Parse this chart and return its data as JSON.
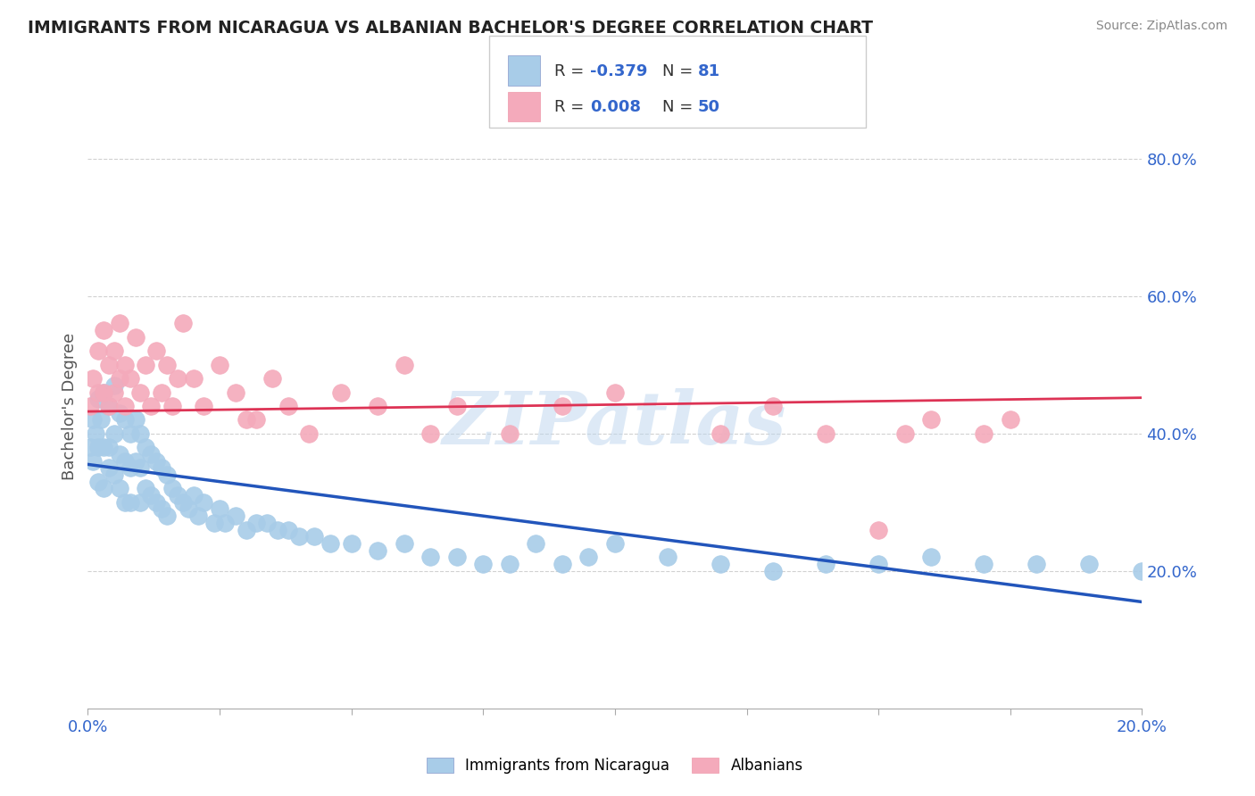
{
  "title": "IMMIGRANTS FROM NICARAGUA VS ALBANIAN BACHELOR'S DEGREE CORRELATION CHART",
  "source_text": "Source: ZipAtlas.com",
  "ylabel": "Bachelor's Degree",
  "xlim": [
    0.0,
    0.2
  ],
  "ylim": [
    0.0,
    0.88
  ],
  "yticks": [
    0.2,
    0.4,
    0.6,
    0.8
  ],
  "ytick_labels": [
    "20.0%",
    "40.0%",
    "60.0%",
    "80.0%"
  ],
  "xticks": [
    0.0,
    0.025,
    0.05,
    0.075,
    0.1,
    0.125,
    0.15,
    0.175,
    0.2
  ],
  "xtick_labels": [
    "0.0%",
    "",
    "",
    "",
    "",
    "",
    "",
    "",
    "20.0%"
  ],
  "series1_label": "Immigrants from Nicaragua",
  "series2_label": "Albanians",
  "color1": "#A8CCE8",
  "color2": "#F4AABB",
  "line_color1": "#2255BB",
  "line_color2": "#DD3355",
  "background_color": "#FFFFFF",
  "grid_color": "#CCCCCC",
  "watermark_text": "ZIPatlas",
  "series1_x": [
    0.0005,
    0.001,
    0.001,
    0.0015,
    0.002,
    0.002,
    0.002,
    0.0025,
    0.003,
    0.003,
    0.003,
    0.004,
    0.004,
    0.004,
    0.005,
    0.005,
    0.005,
    0.006,
    0.006,
    0.006,
    0.007,
    0.007,
    0.007,
    0.008,
    0.008,
    0.008,
    0.009,
    0.009,
    0.01,
    0.01,
    0.01,
    0.011,
    0.011,
    0.012,
    0.012,
    0.013,
    0.013,
    0.014,
    0.014,
    0.015,
    0.015,
    0.016,
    0.017,
    0.018,
    0.019,
    0.02,
    0.021,
    0.022,
    0.024,
    0.025,
    0.026,
    0.028,
    0.03,
    0.032,
    0.034,
    0.036,
    0.038,
    0.04,
    0.043,
    0.046,
    0.05,
    0.055,
    0.06,
    0.065,
    0.07,
    0.075,
    0.08,
    0.085,
    0.09,
    0.095,
    0.1,
    0.11,
    0.12,
    0.13,
    0.14,
    0.15,
    0.16,
    0.17,
    0.18,
    0.19,
    0.2
  ],
  "series1_y": [
    0.38,
    0.42,
    0.36,
    0.4,
    0.45,
    0.38,
    0.33,
    0.42,
    0.46,
    0.38,
    0.32,
    0.44,
    0.38,
    0.35,
    0.47,
    0.4,
    0.34,
    0.43,
    0.37,
    0.32,
    0.42,
    0.36,
    0.3,
    0.4,
    0.35,
    0.3,
    0.42,
    0.36,
    0.4,
    0.35,
    0.3,
    0.38,
    0.32,
    0.37,
    0.31,
    0.36,
    0.3,
    0.35,
    0.29,
    0.34,
    0.28,
    0.32,
    0.31,
    0.3,
    0.29,
    0.31,
    0.28,
    0.3,
    0.27,
    0.29,
    0.27,
    0.28,
    0.26,
    0.27,
    0.27,
    0.26,
    0.26,
    0.25,
    0.25,
    0.24,
    0.24,
    0.23,
    0.24,
    0.22,
    0.22,
    0.21,
    0.21,
    0.24,
    0.21,
    0.22,
    0.24,
    0.22,
    0.21,
    0.2,
    0.21,
    0.21,
    0.22,
    0.21,
    0.21,
    0.21,
    0.2
  ],
  "series2_x": [
    0.0005,
    0.001,
    0.002,
    0.002,
    0.003,
    0.003,
    0.004,
    0.004,
    0.005,
    0.005,
    0.006,
    0.006,
    0.007,
    0.007,
    0.008,
    0.009,
    0.01,
    0.011,
    0.012,
    0.013,
    0.014,
    0.015,
    0.016,
    0.017,
    0.018,
    0.02,
    0.022,
    0.025,
    0.028,
    0.03,
    0.032,
    0.035,
    0.038,
    0.042,
    0.048,
    0.055,
    0.06,
    0.065,
    0.07,
    0.08,
    0.09,
    0.1,
    0.12,
    0.13,
    0.14,
    0.15,
    0.155,
    0.16,
    0.17,
    0.175
  ],
  "series2_y": [
    0.44,
    0.48,
    0.52,
    0.46,
    0.55,
    0.46,
    0.5,
    0.44,
    0.52,
    0.46,
    0.56,
    0.48,
    0.5,
    0.44,
    0.48,
    0.54,
    0.46,
    0.5,
    0.44,
    0.52,
    0.46,
    0.5,
    0.44,
    0.48,
    0.56,
    0.48,
    0.44,
    0.5,
    0.46,
    0.42,
    0.42,
    0.48,
    0.44,
    0.4,
    0.46,
    0.44,
    0.5,
    0.4,
    0.44,
    0.4,
    0.44,
    0.46,
    0.4,
    0.44,
    0.4,
    0.26,
    0.4,
    0.42,
    0.4,
    0.42
  ],
  "trend1_x0": 0.0,
  "trend1_y0": 0.355,
  "trend1_x1": 0.2,
  "trend1_y1": 0.155,
  "trend2_x0": 0.0,
  "trend2_y0": 0.432,
  "trend2_x1": 0.2,
  "trend2_y1": 0.452
}
